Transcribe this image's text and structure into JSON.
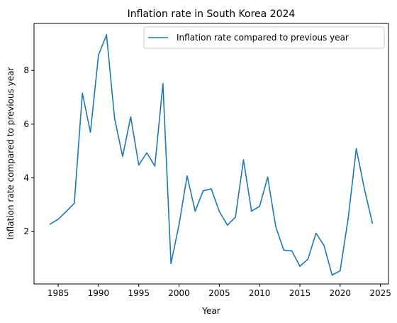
{
  "chart_data": {
    "type": "line",
    "title": "Inflation rate in South Korea 2024",
    "xlabel": "Year",
    "ylabel": "Inflation rate compared to previous year",
    "xlim": [
      1982,
      2026
    ],
    "ylim": [
      0.05,
      9.75
    ],
    "x_ticks": [
      1985,
      1990,
      1995,
      2000,
      2005,
      2010,
      2015,
      2020,
      2025
    ],
    "y_ticks": [
      2,
      4,
      6,
      8
    ],
    "grid": false,
    "legend_position": "upper right",
    "series": [
      {
        "name": "Inflation rate compared to previous year",
        "color": "#1f77b4",
        "x": [
          1984,
          1985,
          1986,
          1987,
          1988,
          1989,
          1990,
          1991,
          1992,
          1993,
          1994,
          1995,
          1996,
          1997,
          1998,
          1999,
          2000,
          2001,
          2002,
          2003,
          2004,
          2005,
          2006,
          2007,
          2008,
          2009,
          2010,
          2011,
          2012,
          2013,
          2014,
          2015,
          2016,
          2017,
          2018,
          2019,
          2020,
          2021,
          2022,
          2023,
          2024
        ],
        "y": [
          2.28,
          2.46,
          2.75,
          3.05,
          7.15,
          5.7,
          8.57,
          9.33,
          6.21,
          4.8,
          6.27,
          4.48,
          4.93,
          4.44,
          7.51,
          0.81,
          2.26,
          4.07,
          2.76,
          3.52,
          3.59,
          2.75,
          2.24,
          2.54,
          4.67,
          2.76,
          2.94,
          4.03,
          2.19,
          1.31,
          1.28,
          0.71,
          0.97,
          1.94,
          1.48,
          0.38,
          0.54,
          2.5,
          5.09,
          3.6,
          2.32
        ]
      }
    ]
  }
}
